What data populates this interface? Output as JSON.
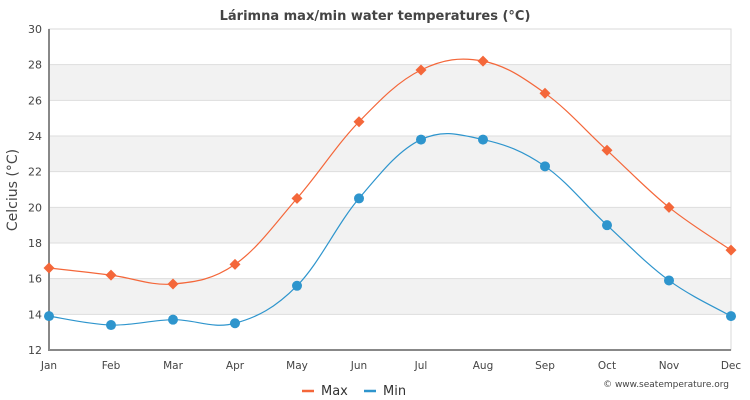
{
  "chart_data": {
    "type": "line",
    "title": "Lárimna max/min water temperatures (°C)",
    "xlabel": "",
    "ylabel": "Celcius (°C)",
    "categories": [
      "Jan",
      "Feb",
      "Mar",
      "Apr",
      "May",
      "Jun",
      "Jul",
      "Aug",
      "Sep",
      "Oct",
      "Nov",
      "Dec"
    ],
    "ylim": [
      12,
      30
    ],
    "yticks": [
      12,
      14,
      16,
      18,
      20,
      22,
      24,
      26,
      28,
      30
    ],
    "grid": true,
    "banded_background": true,
    "legend_position": "bottom-center",
    "series": [
      {
        "name": "Max",
        "color": "#f4673a",
        "marker": "diamond",
        "values": [
          16.6,
          16.2,
          15.7,
          16.8,
          20.5,
          24.8,
          27.7,
          28.2,
          26.4,
          23.2,
          20.0,
          17.6
        ]
      },
      {
        "name": "Min",
        "color": "#2e95cd",
        "marker": "circle",
        "values": [
          13.9,
          13.4,
          13.7,
          13.5,
          15.6,
          20.5,
          23.8,
          23.8,
          22.3,
          19.0,
          15.9,
          13.9
        ]
      }
    ],
    "credit": "© www.seatemperature.org"
  },
  "colors": {
    "band": "#f2f2f2",
    "grid": "#dddddd",
    "axis": "#888888",
    "text": "#444444"
  }
}
